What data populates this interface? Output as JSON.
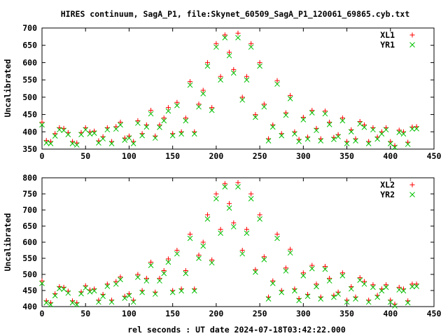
{
  "chart_data": {
    "type": "scatter",
    "title": "HIRES continuum, SagA_P1, file:Skynet_60509_SagA_P1_120061_69865.cyb.txt",
    "xlabel": "rel seconds : UT date 2024-07-18T03:42:22.000",
    "grid": false,
    "legend_position": "top-right",
    "panels": [
      {
        "ylabel": "Uncalibrated",
        "xlim": [
          0,
          450
        ],
        "ylim": [
          350,
          700
        ],
        "x_ticks": [
          0,
          50,
          100,
          150,
          200,
          250,
          300,
          350,
          400,
          450
        ],
        "y_ticks": [
          350,
          400,
          450,
          500,
          550,
          600,
          650,
          700
        ],
        "series": [
          {
            "name": "XL1",
            "color": "#ff0000",
            "marker": "plus",
            "x": [
              0,
              5,
              10,
              15,
              20,
              25,
              30,
              35,
              40,
              45,
              50,
              55,
              60,
              65,
              70,
              75,
              80,
              85,
              90,
              95,
              100,
              105,
              110,
              115,
              120,
              125,
              130,
              135,
              140,
              145,
              150,
              155,
              160,
              165,
              170,
              175,
              180,
              185,
              190,
              195,
              200,
              205,
              210,
              215,
              220,
              225,
              230,
              235,
              240,
              245,
              250,
              255,
              260,
              265,
              270,
              275,
              280,
              285,
              290,
              295,
              300,
              305,
              310,
              315,
              320,
              325,
              330,
              335,
              340,
              345,
              350,
              355,
              360,
              365,
              370,
              375,
              380,
              385,
              390,
              395,
              400,
              405,
              410,
              415,
              420,
              425,
              430
            ],
            "y": [
              428,
              375,
              372,
              395,
              412,
              410,
              398,
              372,
              368,
              398,
              412,
              400,
              402,
              374,
              386,
              412,
              372,
              415,
              428,
              382,
              388,
              372,
              432,
              395,
              420,
              462,
              388,
              420,
              440,
              470,
              395,
              485,
              400,
              440,
              545,
              400,
              480,
              520,
              600,
              470,
              655,
              560,
              680,
              630,
              580,
              685,
              500,
              560,
              655,
              450,
              600,
              480,
              380,
              420,
              548,
              395,
              455,
              505,
              400,
              378,
              442,
              385,
              462,
              410,
              380,
              460,
              428,
              384,
              392,
              440,
              372,
              406,
              380,
              430,
              420,
              372,
              412,
              385,
              400,
              412,
              372,
              360,
              405,
              400,
              370,
              414,
              415
            ]
          },
          {
            "name": "YR1",
            "color": "#00c000",
            "marker": "x",
            "x": [
              0,
              5,
              10,
              15,
              20,
              25,
              30,
              35,
              40,
              45,
              50,
              55,
              60,
              65,
              70,
              75,
              80,
              85,
              90,
              95,
              100,
              105,
              110,
              115,
              120,
              125,
              130,
              135,
              140,
              145,
              150,
              155,
              160,
              165,
              170,
              175,
              180,
              185,
              190,
              195,
              200,
              205,
              210,
              215,
              220,
              225,
              230,
              235,
              240,
              245,
              250,
              255,
              260,
              265,
              270,
              275,
              280,
              285,
              290,
              295,
              300,
              305,
              310,
              315,
              320,
              325,
              330,
              335,
              340,
              345,
              350,
              355,
              360,
              365,
              370,
              375,
              380,
              385,
              390,
              395,
              400,
              405,
              410,
              415,
              420,
              425,
              430
            ],
            "y": [
              420,
              368,
              366,
              388,
              406,
              404,
              392,
              366,
              362,
              392,
              406,
              394,
              396,
              368,
              380,
              406,
              366,
              408,
              420,
              376,
              382,
              366,
              425,
              389,
              414,
              452,
              382,
              413,
              432,
              460,
              389,
              476,
              394,
              432,
              535,
              394,
              472,
              510,
              590,
              462,
              645,
              550,
              672,
              620,
              570,
              672,
              492,
              550,
              645,
              442,
              590,
              472,
              374,
              414,
              538,
              389,
              448,
              496,
              394,
              372,
              435,
              379,
              455,
              404,
              374,
              452,
              421,
              378,
              386,
              432,
              366,
              400,
              374,
              423,
              413,
              366,
              406,
              379,
              394,
              406,
              366,
              355,
              398,
              394,
              364,
              408,
              409
            ]
          }
        ]
      },
      {
        "ylabel": "Uncalibrated",
        "xlim": [
          0,
          450
        ],
        "ylim": [
          400,
          800
        ],
        "x_ticks": [
          0,
          50,
          100,
          150,
          200,
          250,
          300,
          350,
          400,
          450
        ],
        "y_ticks": [
          400,
          450,
          500,
          550,
          600,
          650,
          700,
          750,
          800
        ],
        "series": [
          {
            "name": "XL2",
            "color": "#ff0000",
            "marker": "plus",
            "x": [
              0,
              5,
              10,
              15,
              20,
              25,
              30,
              35,
              40,
              45,
              50,
              55,
              60,
              65,
              70,
              75,
              80,
              85,
              90,
              95,
              100,
              105,
              110,
              115,
              120,
              125,
              130,
              135,
              140,
              145,
              150,
              155,
              160,
              165,
              170,
              175,
              180,
              185,
              190,
              195,
              200,
              205,
              210,
              215,
              220,
              225,
              230,
              235,
              240,
              245,
              250,
              255,
              260,
              265,
              270,
              275,
              280,
              285,
              290,
              295,
              300,
              305,
              310,
              315,
              320,
              325,
              330,
              335,
              340,
              345,
              350,
              355,
              360,
              365,
              370,
              375,
              380,
              385,
              390,
              395,
              400,
              405,
              410,
              415,
              420,
              425,
              430
            ],
            "y": [
              480,
              418,
              412,
              440,
              462,
              460,
              448,
              418,
              412,
              446,
              465,
              452,
              455,
              420,
              438,
              470,
              420,
              478,
              492,
              432,
              440,
              420,
              500,
              450,
              488,
              538,
              445,
              488,
              512,
              548,
              450,
              575,
              455,
              512,
              625,
              455,
              560,
              600,
              685,
              545,
              750,
              640,
              782,
              720,
              660,
              785,
              575,
              640,
              750,
              515,
              685,
              555,
              430,
              480,
              625,
              450,
              520,
              578,
              455,
              425,
              505,
              438,
              528,
              470,
              430,
              525,
              488,
              435,
              445,
              505,
              420,
              462,
              430,
              490,
              478,
              420,
              468,
              435,
              455,
              468,
              420,
              408,
              460,
              455,
              418,
              470,
              470
            ]
          },
          {
            "name": "YR2",
            "color": "#00c000",
            "marker": "x",
            "x": [
              0,
              5,
              10,
              15,
              20,
              25,
              30,
              35,
              40,
              45,
              50,
              55,
              60,
              65,
              70,
              75,
              80,
              85,
              90,
              95,
              100,
              105,
              110,
              115,
              120,
              125,
              130,
              135,
              140,
              145,
              150,
              155,
              160,
              165,
              170,
              175,
              180,
              185,
              190,
              195,
              200,
              205,
              210,
              215,
              220,
              225,
              230,
              235,
              240,
              245,
              250,
              255,
              260,
              265,
              270,
              275,
              280,
              285,
              290,
              295,
              300,
              305,
              310,
              315,
              320,
              325,
              330,
              335,
              340,
              345,
              350,
              355,
              360,
              365,
              370,
              375,
              380,
              385,
              390,
              395,
              400,
              405,
              410,
              415,
              420,
              425,
              430
            ],
            "y": [
              472,
              412,
              406,
              434,
              456,
              454,
              442,
              412,
              406,
              440,
              458,
              446,
              449,
              414,
              432,
              463,
              414,
              470,
              484,
              426,
              434,
              414,
              491,
              444,
              480,
              528,
              439,
              480,
              503,
              538,
              444,
              564,
              449,
              503,
              612,
              449,
              550,
              588,
              672,
              536,
              735,
              628,
              772,
              706,
              648,
              772,
              564,
              628,
              735,
              507,
              672,
              546,
              424,
              472,
              612,
              444,
              511,
              567,
              449,
              419,
              496,
              432,
              518,
              462,
              424,
              516,
              480,
              429,
              439,
              496,
              414,
              455,
              424,
              482,
              470,
              414,
              460,
              429,
              449,
              460,
              414,
              402,
              452,
              449,
              412,
              462,
              463
            ]
          }
        ]
      }
    ]
  }
}
